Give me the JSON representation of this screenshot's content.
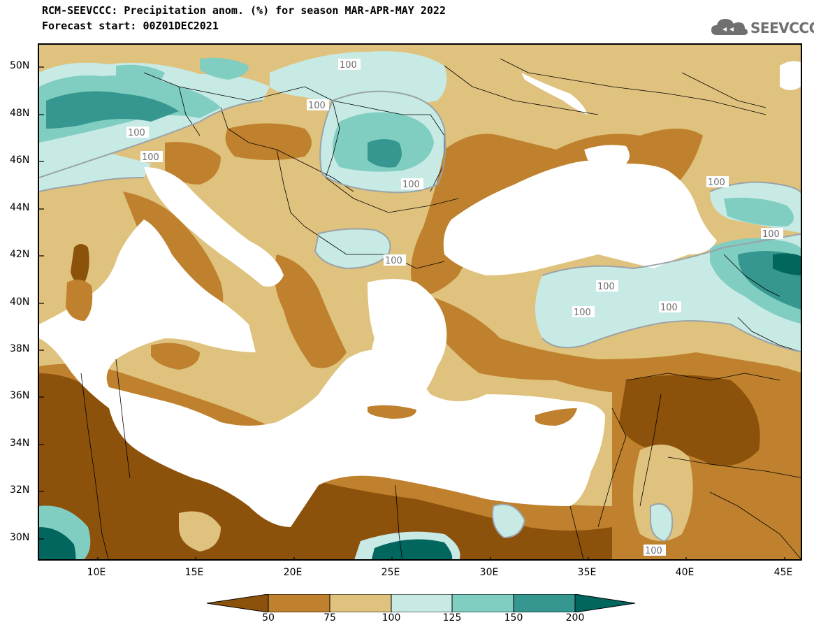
{
  "header": {
    "title_line1": "RCM-SEEVCCC: Precipitation anom. (%) for season MAR-APR-MAY 2022",
    "title_line2": "Forecast start: 00Z01DEC2021",
    "logo_text": "SEEVCCC",
    "logo_icon": "cloud-icon"
  },
  "map": {
    "type": "filled-contour-map",
    "variable": "Precipitation anomaly (%)",
    "lat_labels": [
      "50N",
      "48N",
      "46N",
      "44N",
      "42N",
      "40N",
      "38N",
      "36N",
      "34N",
      "32N",
      "30N"
    ],
    "lon_labels": [
      "10E",
      "15E",
      "20E",
      "25E",
      "30E",
      "35E",
      "40E",
      "45E"
    ],
    "lat_range": [
      29,
      51
    ],
    "lon_range": [
      7,
      46
    ],
    "contour_labels": [
      "100",
      "100",
      "100",
      "100",
      "100",
      "100",
      "100",
      "100",
      "100",
      "100",
      "100",
      "100"
    ],
    "colors": {
      "below_50": "#8c510a",
      "50_75": "#bf812d",
      "75_100": "#dfc27d",
      "100_125": "#c7eae5",
      "125_150": "#80cdc1",
      "150_200": "#35978f",
      "above_200": "#01665e",
      "sea": "#ffffff"
    }
  },
  "colorbar": {
    "levels": [
      "50",
      "75",
      "100",
      "125",
      "150",
      "200"
    ]
  }
}
